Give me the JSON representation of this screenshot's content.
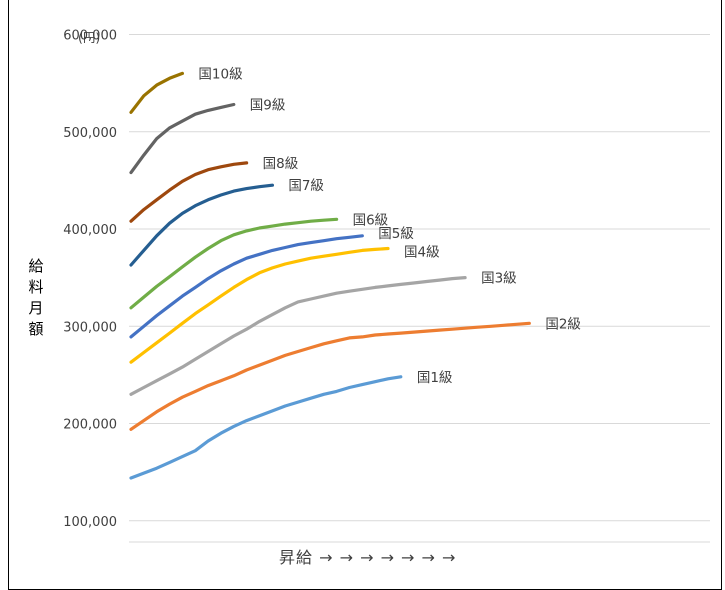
{
  "chart_data": {
    "type": "line",
    "title": "",
    "unit_label": "(円)",
    "ylabel": "給料月額",
    "xlabel": "昇給 → → → → → → →",
    "ylim": [
      0,
      600000
    ],
    "yticks": [
      "100,000",
      "200,000",
      "300,000",
      "400,000",
      "500,000",
      "600,000"
    ],
    "ytick_values": [
      100000,
      200000,
      300000,
      400000,
      500000,
      600000
    ],
    "grid": true,
    "legend": "direct labels at line ends",
    "series": [
      {
        "name": "国1級",
        "color": "#5B9BD5",
        "values": [
          144000,
          149000,
          154000,
          160000,
          166000,
          172000,
          182000,
          190000,
          197000,
          203000,
          208000,
          213000,
          218000,
          222000,
          226000,
          230000,
          233000,
          237000,
          240000,
          243000,
          246000,
          248000
        ]
      },
      {
        "name": "国2級",
        "color": "#ED7D31",
        "values": [
          194000,
          203000,
          212000,
          220000,
          227000,
          233000,
          239000,
          244000,
          249000,
          255000,
          260000,
          265000,
          270000,
          274000,
          278000,
          282000,
          285000,
          288000,
          289000,
          291000,
          292000,
          293000,
          294000,
          295000,
          296000,
          297000,
          298000,
          299000,
          300000,
          301000,
          302000,
          303000
        ]
      },
      {
        "name": "国3級",
        "color": "#A5A5A5",
        "values": [
          230000,
          237000,
          244000,
          251000,
          258000,
          266000,
          274000,
          282000,
          290000,
          297000,
          305000,
          312000,
          319000,
          325000,
          328000,
          331000,
          334000,
          336000,
          338000,
          340000,
          341500,
          343000,
          344500,
          346000,
          347500,
          349000,
          350000
        ]
      },
      {
        "name": "国4級",
        "color": "#FFC000",
        "values": [
          263000,
          273000,
          283000,
          293000,
          303000,
          313000,
          322000,
          331000,
          340000,
          348000,
          355000,
          360000,
          364000,
          367000,
          370000,
          372000,
          374000,
          376000,
          378000,
          379000,
          380000
        ]
      },
      {
        "name": "国5級",
        "color": "#4472C4",
        "values": [
          289000,
          300000,
          311000,
          321000,
          331000,
          340000,
          349000,
          357000,
          364000,
          370000,
          374000,
          378000,
          381000,
          384000,
          386000,
          388000,
          390000,
          391500,
          393000
        ]
      },
      {
        "name": "国6級",
        "color": "#70AD47",
        "values": [
          319000,
          330000,
          341000,
          351000,
          361000,
          371000,
          380000,
          388000,
          394000,
          398000,
          401000,
          403000,
          405000,
          406500,
          408000,
          409000,
          410000
        ]
      },
      {
        "name": "国7級",
        "color": "#255E91",
        "values": [
          363000,
          378000,
          393000,
          406000,
          416000,
          424000,
          430000,
          435000,
          439000,
          441500,
          443500,
          445000
        ]
      },
      {
        "name": "国8級",
        "color": "#9E480E",
        "values": [
          408000,
          420000,
          430000,
          440000,
          449000,
          456000,
          461000,
          464000,
          466500,
          468000
        ]
      },
      {
        "name": "国9級",
        "color": "#636363",
        "values": [
          458000,
          476000,
          493000,
          504000,
          511000,
          518000,
          522000,
          525000,
          528000
        ]
      },
      {
        "name": "国10級",
        "color": "#997300",
        "values": [
          520000,
          537000,
          548000,
          555000,
          560000
        ]
      }
    ]
  }
}
